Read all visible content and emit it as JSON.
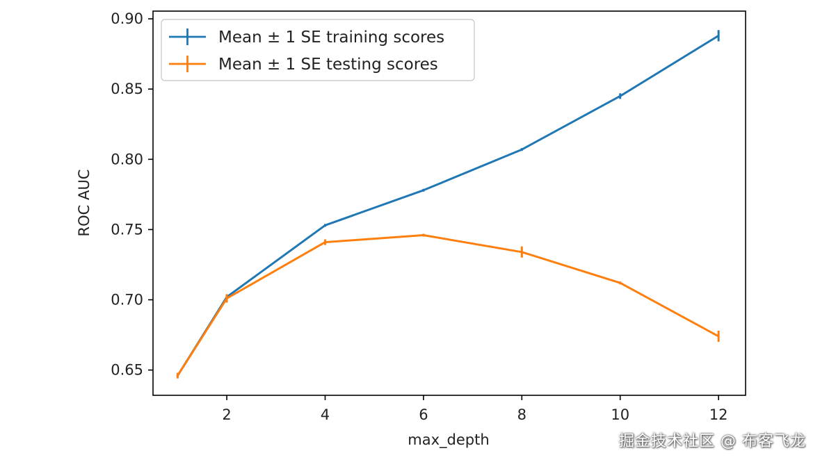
{
  "chart_data": {
    "type": "line",
    "title": "",
    "xlabel": "max_depth",
    "ylabel": "ROC AUC",
    "xlim": [
      0.5,
      12.55
    ],
    "ylim": [
      0.632,
      0.9055
    ],
    "xticks": [
      2,
      4,
      6,
      8,
      10,
      12
    ],
    "xtick_labels": [
      "2",
      "4",
      "6",
      "8",
      "10",
      "12"
    ],
    "yticks": [
      0.65,
      0.7,
      0.75,
      0.8,
      0.85,
      0.9
    ],
    "ytick_labels": [
      "0.65",
      "0.70",
      "0.75",
      "0.80",
      "0.85",
      "0.90"
    ],
    "grid": false,
    "legend_position": "upper-left",
    "x": [
      1,
      2,
      4,
      6,
      8,
      10,
      12
    ],
    "series": [
      {
        "name": "Mean ± 1 SE training scores",
        "color": "#1f77b4",
        "values": [
          0.646,
          0.702,
          0.753,
          0.778,
          0.807,
          0.845,
          0.888
        ],
        "errors": [
          0.001,
          0.001,
          0.001,
          0.001,
          0.001,
          0.002,
          0.004
        ]
      },
      {
        "name": "Mean ± 1 SE testing scores",
        "color": "#ff7f0e",
        "values": [
          0.646,
          0.701,
          0.741,
          0.746,
          0.734,
          0.712,
          0.674
        ],
        "errors": [
          0.002,
          0.003,
          0.002,
          0.001,
          0.004,
          0.001,
          0.004
        ]
      }
    ]
  },
  "watermark": "掘金技术社区 @ 布客飞龙"
}
